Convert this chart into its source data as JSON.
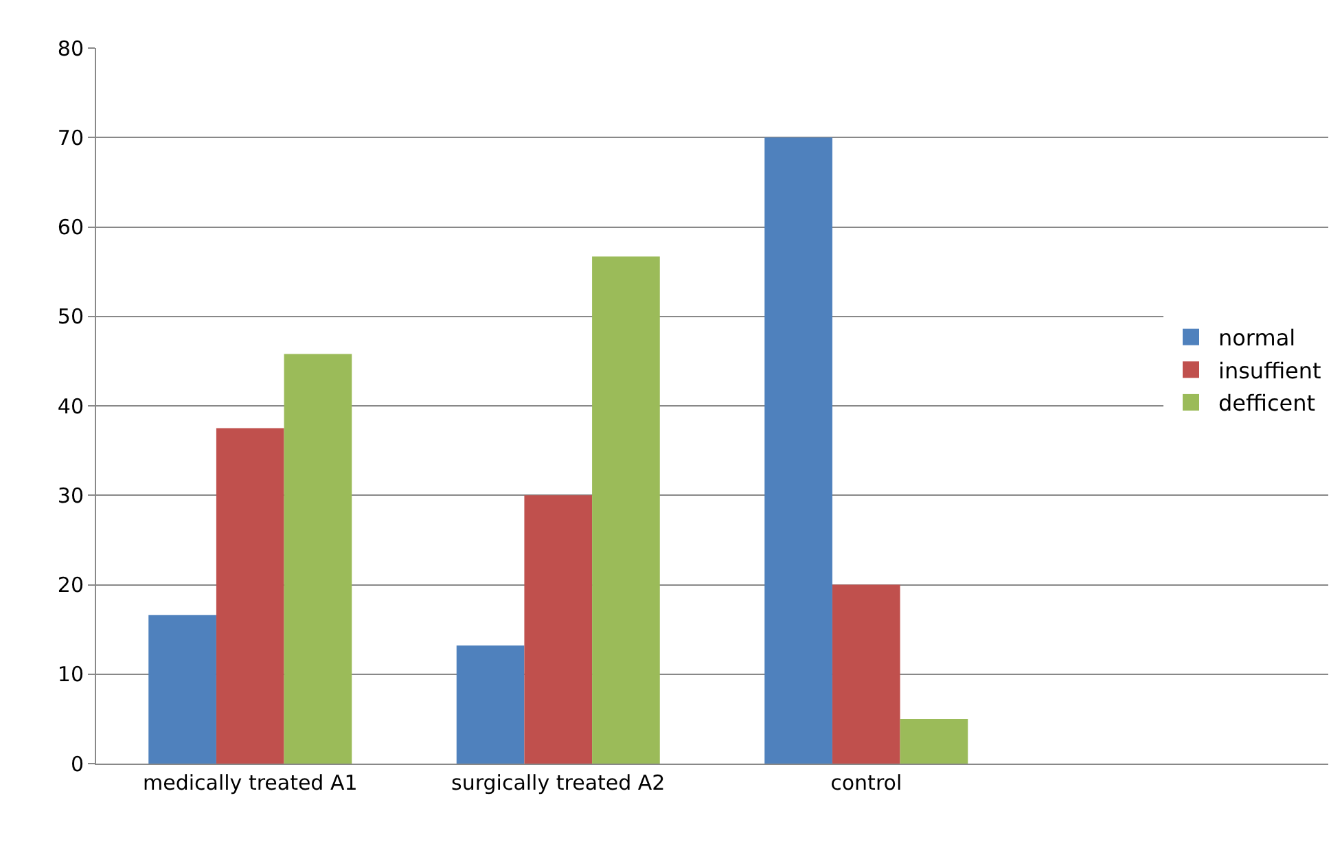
{
  "chart_data": {
    "type": "bar",
    "categories": [
      "medically treated A1",
      "surgically treated A2",
      "control",
      null
    ],
    "series": [
      {
        "name": "normal",
        "color": "#4f81bd",
        "values": [
          16.6,
          13.2,
          70,
          null
        ]
      },
      {
        "name": "insuffient",
        "color": "#c0504d",
        "values": [
          37.5,
          30,
          20,
          null
        ]
      },
      {
        "name": "defficent",
        "color": "#9bbb59",
        "values": [
          45.8,
          56.7,
          5,
          null
        ]
      }
    ],
    "ylim": [
      0,
      80
    ],
    "yticks": [
      0,
      10,
      20,
      30,
      40,
      50,
      60,
      70,
      80
    ],
    "grid": "y",
    "legend": "right"
  }
}
